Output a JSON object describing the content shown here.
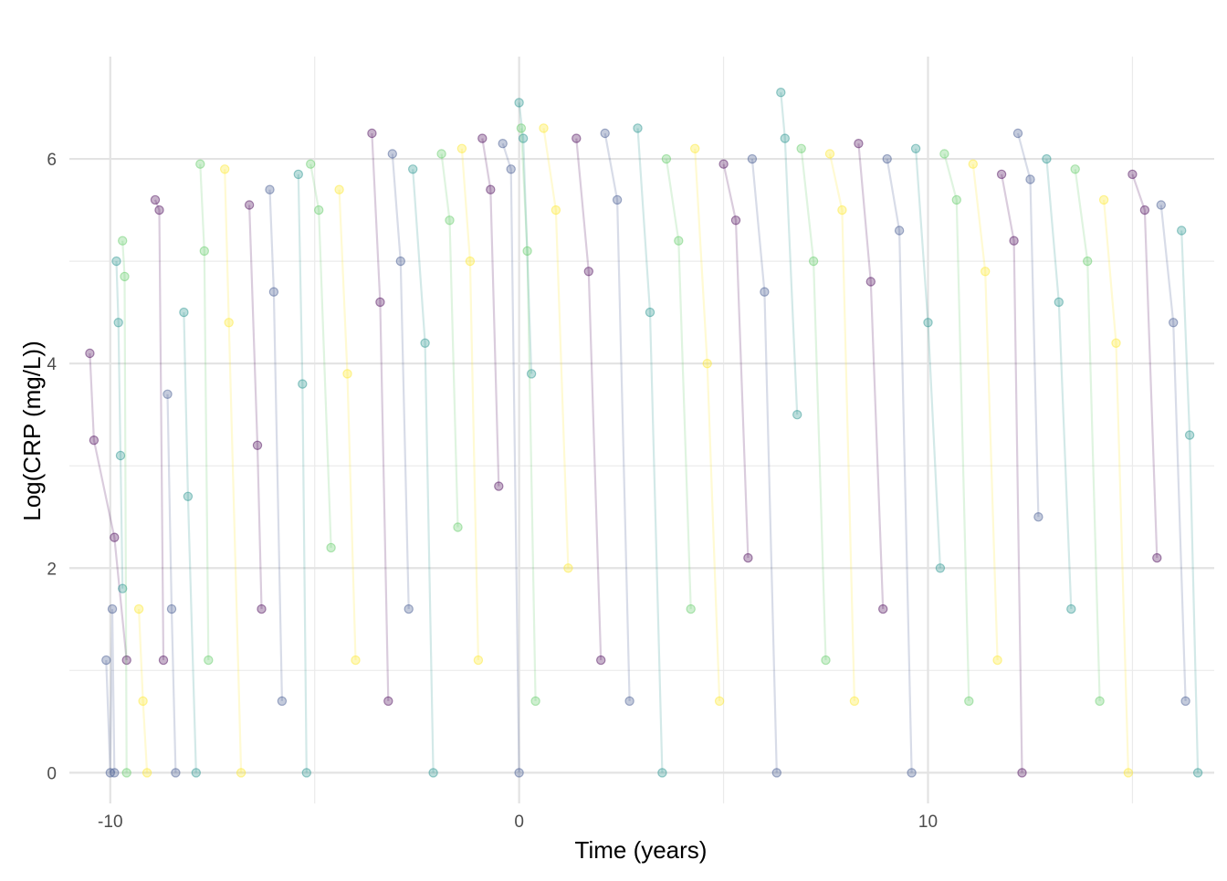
{
  "chart_data": {
    "type": "line",
    "title": "",
    "xlabel": "Time (years)",
    "ylabel": "Log(CRP (mg/L))",
    "xlim": [
      -11,
      17
    ],
    "ylim": [
      -0.3,
      7
    ],
    "x_ticks": [
      {
        "value": -10,
        "label": "-10"
      },
      {
        "value": 0,
        "label": "0"
      },
      {
        "value": 10,
        "label": "10"
      }
    ],
    "y_ticks": [
      {
        "value": 0,
        "label": "0"
      },
      {
        "value": 2,
        "label": "2"
      },
      {
        "value": 4,
        "label": "4"
      },
      {
        "value": 6,
        "label": "6"
      }
    ],
    "grid": {
      "major_x": [
        -10,
        0,
        10
      ],
      "minor_x": [
        -5,
        5,
        15
      ],
      "major_y": [
        0,
        2,
        4,
        6
      ],
      "minor_y": [
        1,
        3,
        5
      ]
    },
    "legend": "none",
    "color_scale": [
      "#440154",
      "#3b528b",
      "#21918c",
      "#5ec962",
      "#fde725"
    ],
    "point_opacity": 0.3,
    "line_opacity": 0.2,
    "series": [
      {
        "x": [
          -10.5,
          -10.4,
          -9.9,
          -9.6
        ],
        "y": [
          4.1,
          3.25,
          2.3,
          1.1
        ]
      },
      {
        "x": [
          -10.1,
          -10.0,
          -9.95,
          -9.9
        ],
        "y": [
          1.1,
          0.0,
          1.6,
          0.0
        ]
      },
      {
        "x": [
          -9.85,
          -9.8,
          -9.75,
          -9.7
        ],
        "y": [
          5.0,
          4.4,
          3.1,
          1.8
        ]
      },
      {
        "x": [
          -9.7,
          -9.65,
          -9.6
        ],
        "y": [
          5.2,
          4.85,
          0.0
        ]
      },
      {
        "x": [
          -9.3,
          -9.2,
          -9.1
        ],
        "y": [
          1.6,
          0.7,
          0.0
        ]
      },
      {
        "x": [
          -8.9,
          -8.8,
          -8.7
        ],
        "y": [
          5.6,
          5.5,
          1.1
        ]
      },
      {
        "x": [
          -8.6,
          -8.5,
          -8.4
        ],
        "y": [
          3.7,
          1.6,
          0.0
        ]
      },
      {
        "x": [
          -8.2,
          -8.1,
          -7.9
        ],
        "y": [
          4.5,
          2.7,
          0.0
        ]
      },
      {
        "x": [
          -7.8,
          -7.7,
          -7.6
        ],
        "y": [
          5.95,
          5.1,
          1.1
        ]
      },
      {
        "x": [
          -7.2,
          -7.1,
          -6.8
        ],
        "y": [
          5.9,
          4.4,
          0.0
        ]
      },
      {
        "x": [
          -6.6,
          -6.4,
          -6.3
        ],
        "y": [
          5.55,
          3.2,
          1.6
        ]
      },
      {
        "x": [
          -6.1,
          -6.0,
          -5.8
        ],
        "y": [
          5.7,
          4.7,
          0.7
        ]
      },
      {
        "x": [
          -5.4,
          -5.3,
          -5.2
        ],
        "y": [
          5.85,
          3.8,
          0.0
        ]
      },
      {
        "x": [
          -5.1,
          -4.9,
          -4.6
        ],
        "y": [
          5.95,
          5.5,
          2.2
        ]
      },
      {
        "x": [
          -4.4,
          -4.2,
          -4.0
        ],
        "y": [
          5.7,
          3.9,
          1.1
        ]
      },
      {
        "x": [
          -3.6,
          -3.4,
          -3.2
        ],
        "y": [
          6.25,
          4.6,
          0.7
        ]
      },
      {
        "x": [
          -3.1,
          -2.9,
          -2.7
        ],
        "y": [
          6.05,
          5.0,
          1.6
        ]
      },
      {
        "x": [
          -2.6,
          -2.3,
          -2.1
        ],
        "y": [
          5.9,
          4.2,
          0.0
        ]
      },
      {
        "x": [
          -1.9,
          -1.7,
          -1.5
        ],
        "y": [
          6.05,
          5.4,
          2.4
        ]
      },
      {
        "x": [
          -1.4,
          -1.2,
          -1.0
        ],
        "y": [
          6.1,
          5.0,
          1.1
        ]
      },
      {
        "x": [
          -0.9,
          -0.7,
          -0.5
        ],
        "y": [
          6.2,
          5.7,
          2.8
        ]
      },
      {
        "x": [
          -0.4,
          -0.2,
          0.0
        ],
        "y": [
          6.15,
          5.9,
          0.0
        ]
      },
      {
        "x": [
          0.0,
          0.1,
          0.3
        ],
        "y": [
          6.55,
          6.2,
          3.9
        ]
      },
      {
        "x": [
          0.05,
          0.2,
          0.4
        ],
        "y": [
          6.3,
          5.1,
          0.7
        ]
      },
      {
        "x": [
          0.6,
          0.9,
          1.2
        ],
        "y": [
          6.3,
          5.5,
          2.0
        ]
      },
      {
        "x": [
          1.4,
          1.7,
          2.0
        ],
        "y": [
          6.2,
          4.9,
          1.1
        ]
      },
      {
        "x": [
          2.1,
          2.4,
          2.7
        ],
        "y": [
          6.25,
          5.6,
          0.7
        ]
      },
      {
        "x": [
          2.9,
          3.2,
          3.5
        ],
        "y": [
          6.3,
          4.5,
          0.0
        ]
      },
      {
        "x": [
          3.6,
          3.9,
          4.2
        ],
        "y": [
          6.0,
          5.2,
          1.6
        ]
      },
      {
        "x": [
          4.3,
          4.6,
          4.9
        ],
        "y": [
          6.1,
          4.0,
          0.7
        ]
      },
      {
        "x": [
          5.0,
          5.3,
          5.6
        ],
        "y": [
          5.95,
          5.4,
          2.1
        ]
      },
      {
        "x": [
          5.7,
          6.0,
          6.3
        ],
        "y": [
          6.0,
          4.7,
          0.0
        ]
      },
      {
        "x": [
          6.4,
          6.5,
          6.8
        ],
        "y": [
          6.65,
          6.2,
          3.5
        ]
      },
      {
        "x": [
          6.9,
          7.2,
          7.5
        ],
        "y": [
          6.1,
          5.0,
          1.1
        ]
      },
      {
        "x": [
          7.6,
          7.9,
          8.2
        ],
        "y": [
          6.05,
          5.5,
          0.7
        ]
      },
      {
        "x": [
          8.3,
          8.6,
          8.9
        ],
        "y": [
          6.15,
          4.8,
          1.6
        ]
      },
      {
        "x": [
          9.0,
          9.3,
          9.6
        ],
        "y": [
          6.0,
          5.3,
          0.0
        ]
      },
      {
        "x": [
          9.7,
          10.0,
          10.3
        ],
        "y": [
          6.1,
          4.4,
          2.0
        ]
      },
      {
        "x": [
          10.4,
          10.7,
          11.0
        ],
        "y": [
          6.05,
          5.6,
          0.7
        ]
      },
      {
        "x": [
          11.1,
          11.4,
          11.7
        ],
        "y": [
          5.95,
          4.9,
          1.1
        ]
      },
      {
        "x": [
          11.8,
          12.1,
          12.3
        ],
        "y": [
          5.85,
          5.2,
          0.0
        ]
      },
      {
        "x": [
          12.2,
          12.5,
          12.7
        ],
        "y": [
          6.25,
          5.8,
          2.5
        ]
      },
      {
        "x": [
          12.9,
          13.2,
          13.5
        ],
        "y": [
          6.0,
          4.6,
          1.6
        ]
      },
      {
        "x": [
          13.6,
          13.9,
          14.2
        ],
        "y": [
          5.9,
          5.0,
          0.7
        ]
      },
      {
        "x": [
          14.3,
          14.6,
          14.9
        ],
        "y": [
          5.6,
          4.2,
          0.0
        ]
      },
      {
        "x": [
          15.0,
          15.3,
          15.6
        ],
        "y": [
          5.85,
          5.5,
          2.1
        ]
      },
      {
        "x": [
          15.7,
          16.0,
          16.3
        ],
        "y": [
          5.55,
          4.4,
          0.7
        ]
      },
      {
        "x": [
          16.2,
          16.4,
          16.6
        ],
        "y": [
          5.3,
          3.3,
          0.0
        ]
      }
    ]
  }
}
